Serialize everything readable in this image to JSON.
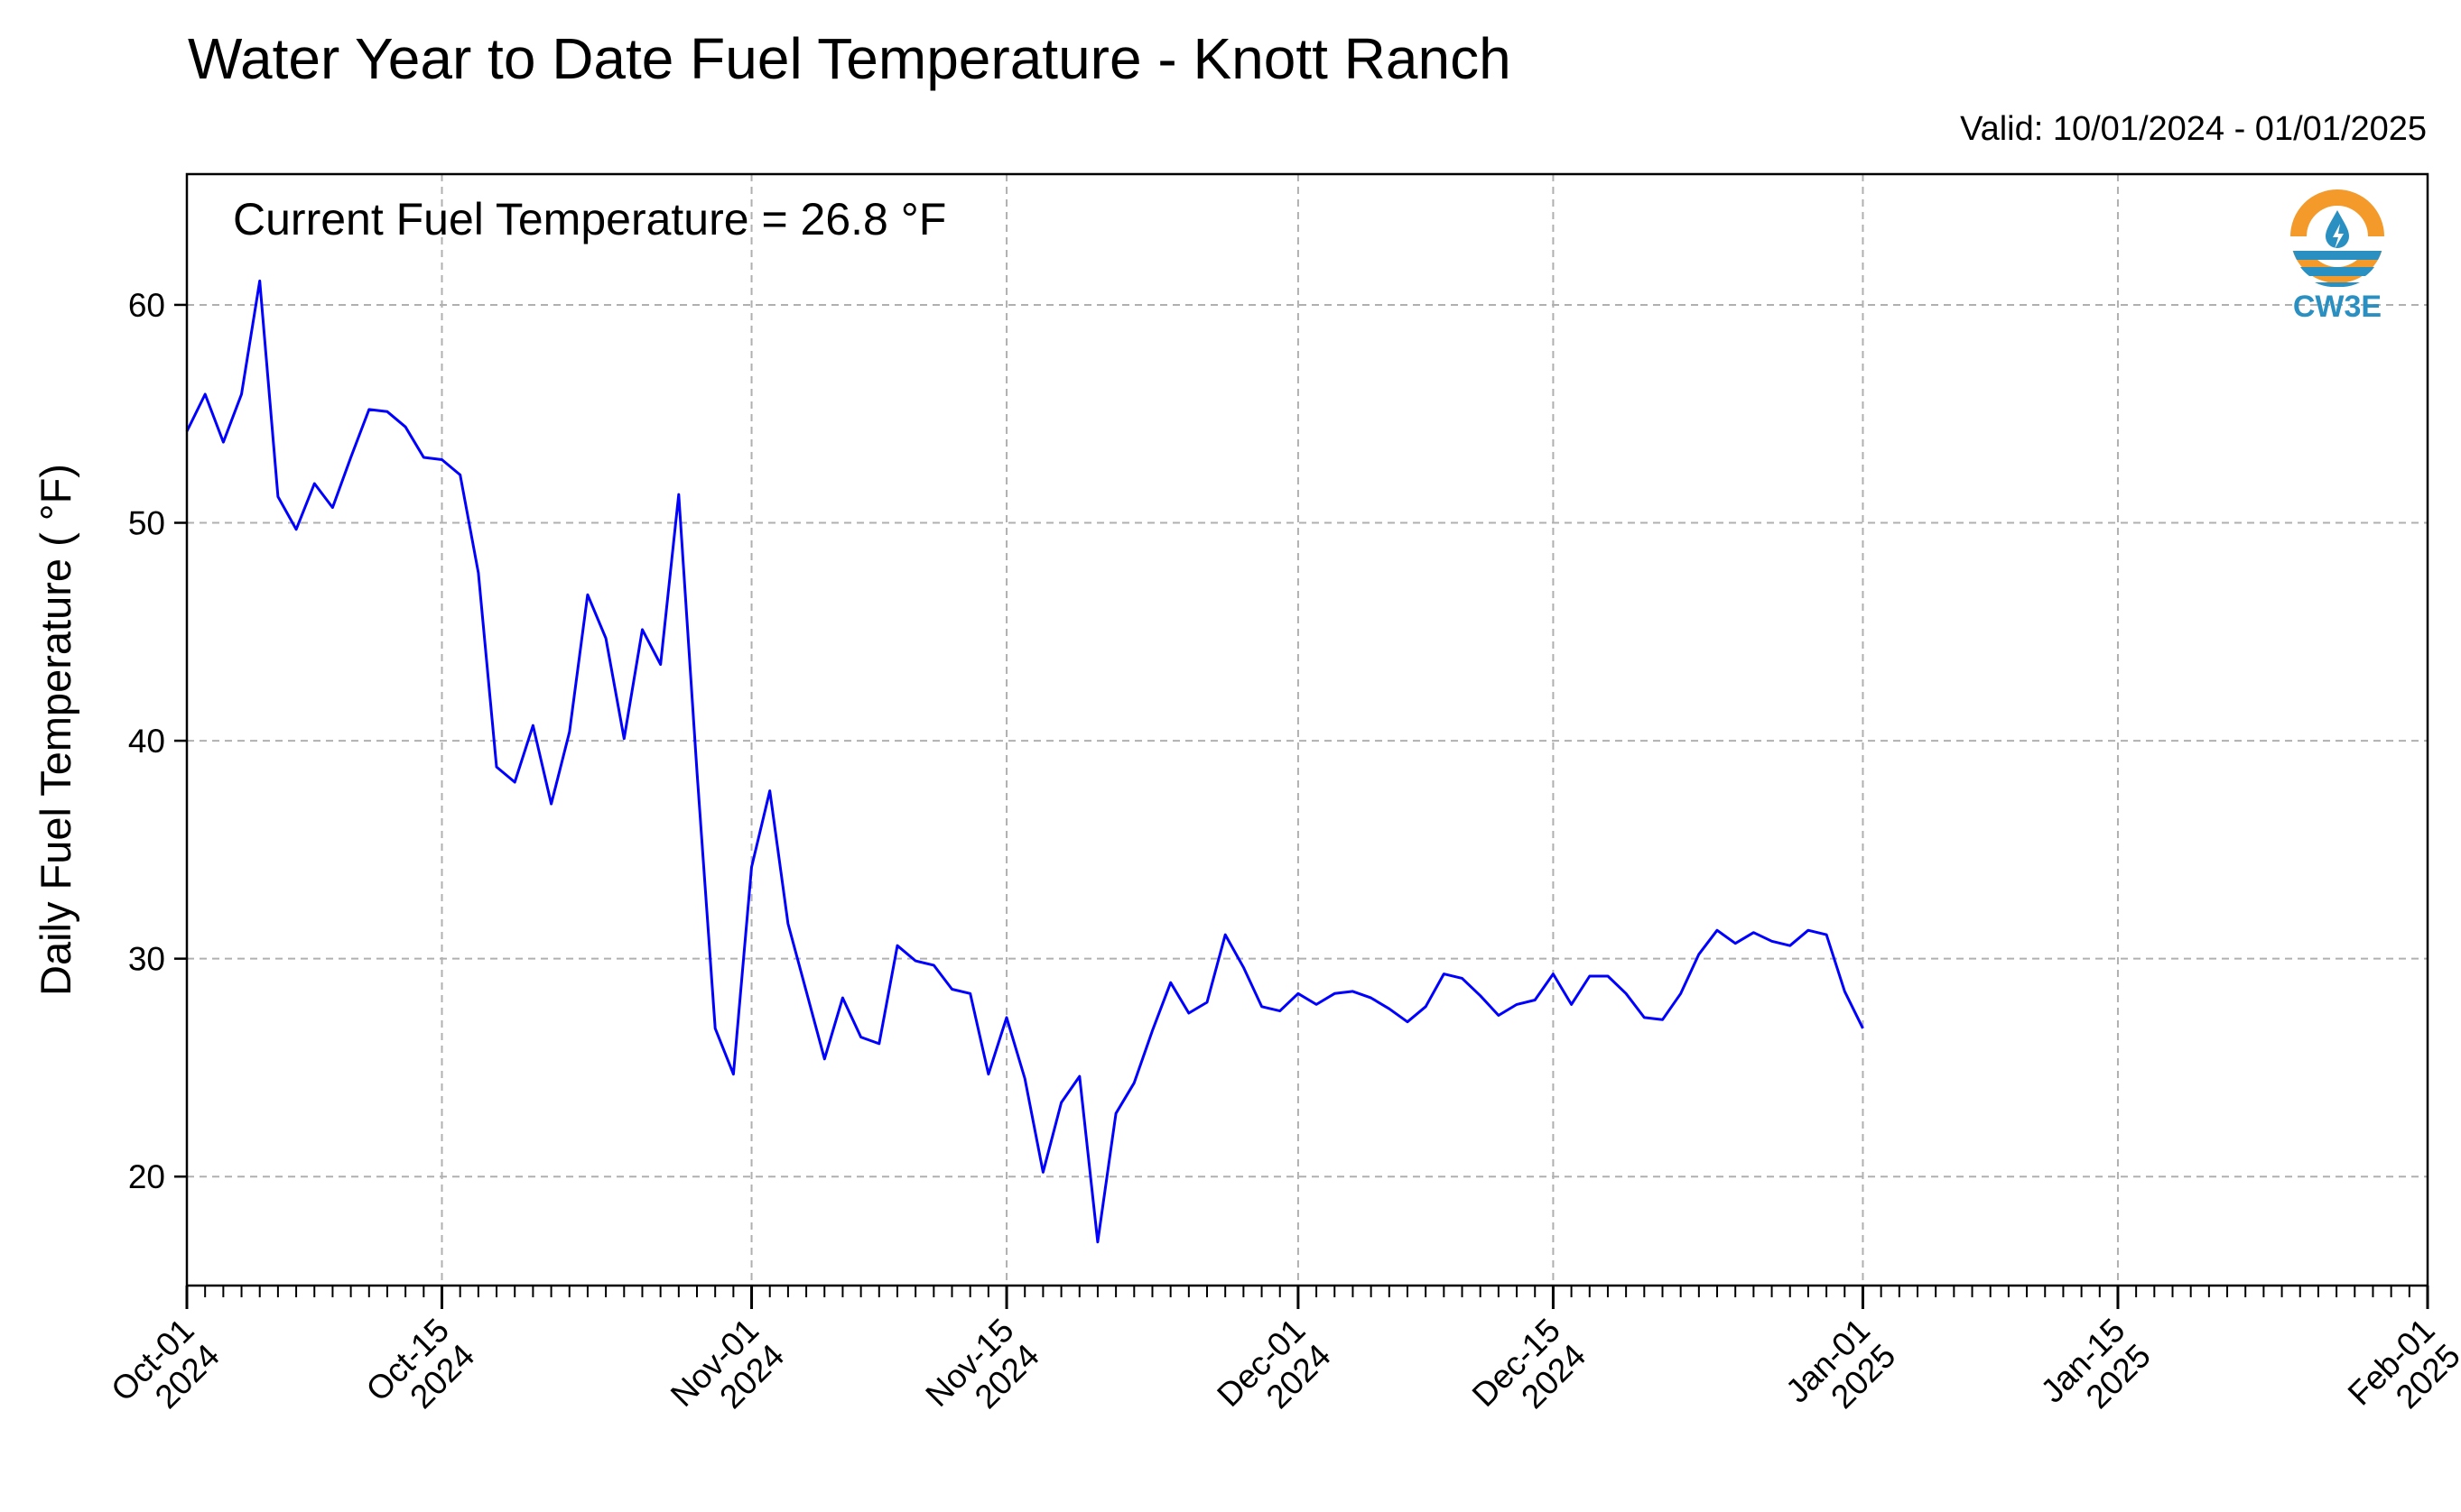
{
  "title": "Water Year to Date Fuel Temperature - Knott Ranch",
  "valid": "Valid: 10/01/2024 - 01/01/2025",
  "annotation": "Current Fuel Temperature = 26.8  °F",
  "logo": {
    "text": "CW3E",
    "icon": "cw3e-water-drop-logo",
    "colors": {
      "orange": "#f39a2b",
      "blue": "#2a8fc1"
    }
  },
  "chart_data": {
    "type": "line",
    "ylabel": "Daily Fuel Temperature ( °F)",
    "xlabel": "",
    "xlim": [
      "2024-10-01",
      "2025-02-01"
    ],
    "ylim": [
      15,
      66
    ],
    "grid": true,
    "line_color": "#0000ff",
    "y_ticks": [
      20,
      30,
      40,
      50,
      60
    ],
    "x_ticks": [
      {
        "date": "2024-10-01",
        "line1": "Oct-01",
        "line2": "2024"
      },
      {
        "date": "2024-10-15",
        "line1": "Oct-15",
        "line2": "2024"
      },
      {
        "date": "2024-11-01",
        "line1": "Nov-01",
        "line2": "2024"
      },
      {
        "date": "2024-11-15",
        "line1": "Nov-15",
        "line2": "2024"
      },
      {
        "date": "2024-12-01",
        "line1": "Dec-01",
        "line2": "2024"
      },
      {
        "date": "2024-12-15",
        "line1": "Dec-15",
        "line2": "2024"
      },
      {
        "date": "2025-01-01",
        "line1": "Jan-01",
        "line2": "2025"
      },
      {
        "date": "2025-01-15",
        "line1": "Jan-15",
        "line2": "2025"
      },
      {
        "date": "2025-02-01",
        "line1": "Feb-01",
        "line2": "2025"
      }
    ],
    "series": [
      {
        "start_date": "2024-10-01",
        "values": [
          54.2,
          55.9,
          53.7,
          55.9,
          61.1,
          51.2,
          49.7,
          51.8,
          50.7,
          53.0,
          55.2,
          55.1,
          54.4,
          53.0,
          52.9,
          52.2,
          47.7,
          38.8,
          38.1,
          40.7,
          37.1,
          40.4,
          46.7,
          44.7,
          40.1,
          45.1,
          43.5,
          51.3,
          38.6,
          26.8,
          24.7,
          34.2,
          37.7,
          31.6,
          28.5,
          25.4,
          28.2,
          26.4,
          26.1,
          30.6,
          29.9,
          29.7,
          28.6,
          28.4,
          24.7,
          27.3,
          24.5,
          20.2,
          23.4,
          24.6,
          17.0,
          22.9,
          24.3,
          26.7,
          28.9,
          27.5,
          28.0,
          31.1,
          29.6,
          27.8,
          27.6,
          28.4,
          27.9,
          28.4,
          28.5,
          28.2,
          27.7,
          27.1,
          27.8,
          29.3,
          29.1,
          28.3,
          27.4,
          27.9,
          28.1,
          29.3,
          27.9,
          29.2,
          29.2,
          28.4,
          27.3,
          27.2,
          28.4,
          30.2,
          31.3,
          30.7,
          31.2,
          30.8,
          30.6,
          31.3,
          31.1,
          28.5,
          26.8
        ]
      }
    ]
  }
}
